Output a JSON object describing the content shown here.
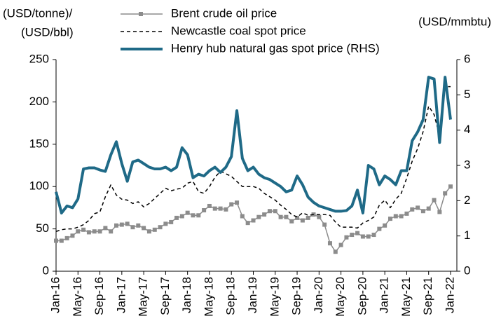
{
  "chart_data": {
    "type": "line",
    "y_label": [
      "(USD/tonne)/",
      "(USD/bbl)"
    ],
    "y2_label": "(USD/mmbtu)",
    "categories": [
      "Jan-16",
      null,
      null,
      null,
      "May-16",
      null,
      null,
      null,
      "Sep-16",
      null,
      null,
      null,
      "Jan-17",
      null,
      null,
      null,
      "May-17",
      null,
      null,
      null,
      "Sep-17",
      null,
      null,
      null,
      "Jan-18",
      null,
      null,
      null,
      "May-18",
      null,
      null,
      null,
      "Sep-18",
      null,
      null,
      null,
      "Jan-19",
      null,
      null,
      null,
      "May-19",
      null,
      null,
      null,
      "Sep-19",
      null,
      null,
      null,
      "Jan-20",
      null,
      null,
      null,
      "May-20",
      null,
      null,
      null,
      "Sep-20",
      null,
      null,
      null,
      "Jan-21",
      null,
      null,
      null,
      "May-21",
      null,
      null,
      null,
      "Sep-21",
      null,
      null,
      null,
      "Jan-22"
    ],
    "series": [
      {
        "name": "Brent crude oil price",
        "color": "#8c8c8c",
        "marker": "square",
        "axis": "y",
        "values": [
          36,
          36,
          39,
          42,
          47,
          49,
          46,
          47,
          47,
          51,
          47,
          54,
          55,
          56,
          52,
          54,
          51,
          47,
          49,
          52,
          56,
          58,
          63,
          65,
          69,
          66,
          66,
          72,
          77,
          74,
          74,
          73,
          79,
          81,
          65,
          57,
          60,
          64,
          67,
          71,
          71,
          64,
          64,
          59,
          63,
          60,
          63,
          67,
          64,
          55,
          33,
          23,
          31,
          40,
          43,
          45,
          41,
          41,
          43,
          50,
          54,
          62,
          65,
          65,
          68,
          73,
          75,
          71,
          74,
          84,
          70,
          92,
          100
        ]
      },
      {
        "name": "Newcastle coal spot price",
        "color": "#000000",
        "dash": true,
        "axis": "y",
        "values": [
          47,
          49,
          50,
          50,
          52,
          55,
          60,
          68,
          70,
          88,
          102,
          90,
          85,
          84,
          80,
          82,
          76,
          80,
          86,
          92,
          98,
          95,
          97,
          98,
          104,
          106,
          94,
          92,
          100,
          111,
          118,
          115,
          112,
          106,
          100,
          100,
          100,
          98,
          92,
          88,
          84,
          78,
          73,
          67,
          64,
          69,
          66,
          67,
          67,
          67,
          66,
          58,
          52,
          52,
          52,
          51,
          57,
          60,
          64,
          78,
          84,
          75,
          85,
          92,
          110,
          130,
          145,
          165,
          195,
          185,
          160,
          218,
          218
        ]
      },
      {
        "name": "Henry hub natural gas spot price (RHS)",
        "color": "#1f6a87",
        "width": 4,
        "axis": "y2",
        "values": [
          2.25,
          1.65,
          1.85,
          1.8,
          2.05,
          2.9,
          2.93,
          2.93,
          2.87,
          2.83,
          3.3,
          3.67,
          3.05,
          2.55,
          3.1,
          3.15,
          3.05,
          2.95,
          2.9,
          2.9,
          2.95,
          2.85,
          2.95,
          3.5,
          3.3,
          2.65,
          2.75,
          2.7,
          2.85,
          2.95,
          2.8,
          2.95,
          3.25,
          4.55,
          3.2,
          2.85,
          2.95,
          2.75,
          2.65,
          2.6,
          2.5,
          2.4,
          2.25,
          2.3,
          2.7,
          2.45,
          2.1,
          1.95,
          1.85,
          1.8,
          1.75,
          1.7,
          1.7,
          1.72,
          1.85,
          2.3,
          1.65,
          3.0,
          2.9,
          2.45,
          2.7,
          2.6,
          2.45,
          2.85,
          2.85,
          3.7,
          3.95,
          4.3,
          5.5,
          5.45,
          3.65,
          5.5,
          4.3
        ]
      }
    ],
    "ylim": [
      0,
      250
    ],
    "yticks": [
      0,
      50,
      100,
      150,
      200,
      250
    ],
    "y2lim": [
      0,
      6
    ],
    "y2ticks": [
      0,
      1,
      2,
      3,
      4,
      5,
      6
    ]
  }
}
